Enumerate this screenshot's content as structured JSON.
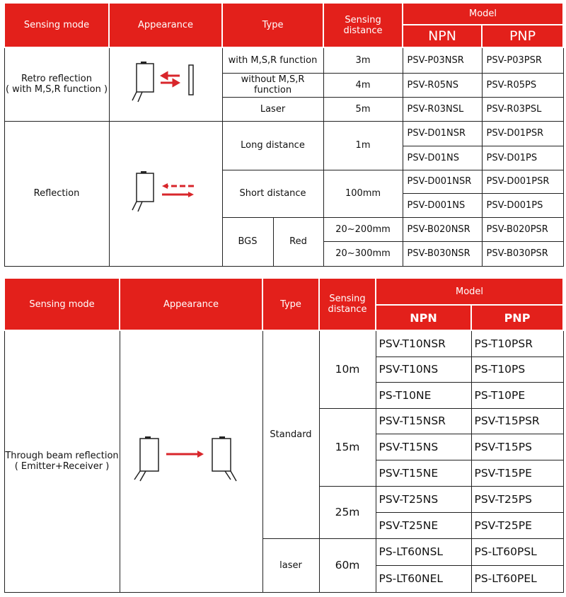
{
  "table1": {
    "headers": {
      "mode": "Sensing mode",
      "appearance": "Appearance",
      "type": "Type",
      "distance": "Sensing distance",
      "model": "Model",
      "npn": "NPN",
      "pnp": "PNP"
    },
    "retro": {
      "mode": "Retro reflection\n( with M,S,R function )",
      "rows": [
        {
          "type": "with M,S,R function",
          "distance": "3m",
          "npn": "PSV-P03NSR",
          "pnp": "PSV-P03PSR"
        },
        {
          "type": "without M,S,R function",
          "distance": "4m",
          "npn": "PSV-R05NS",
          "pnp": "PSV-R05PS"
        },
        {
          "type": "Laser",
          "distance": "5m",
          "npn": "PSV-R03NSL",
          "pnp": "PSV-R03PSL"
        }
      ]
    },
    "reflection": {
      "mode": "Reflection",
      "long": {
        "type": "Long distance",
        "distance": "1m",
        "npn": [
          "PSV-D01NSR",
          "PSV-D01NS"
        ],
        "pnp": [
          "PSV-D01PSR",
          "PSV-D01PS"
        ]
      },
      "short": {
        "type": "Short distance",
        "distance": "100mm",
        "npn": [
          "PSV-D001NSR",
          "PSV-D001NS"
        ],
        "pnp": [
          "PSV-D001PSR",
          "PSV-D001PS"
        ]
      },
      "bgs": {
        "type": "BGS",
        "color": "Red",
        "rows": [
          {
            "distance": "20~200mm",
            "npn": "PSV-B020NSR",
            "pnp": "PSV-B020PSR"
          },
          {
            "distance": "20~300mm",
            "npn": "PSV-B030NSR",
            "pnp": "PSV-B030PSR"
          }
        ]
      }
    }
  },
  "table2": {
    "headers": {
      "mode": "Sensing mode",
      "appearance": "Appearance",
      "type": "Type",
      "distance": "Sensing distance",
      "model": "Model",
      "npn": "NPN",
      "pnp": "PNP"
    },
    "mode": "Through beam reflection\n( Emitter+Receiver )",
    "standard": "Standard",
    "laser": "laser",
    "groups": [
      {
        "distance": "10m",
        "npn": [
          "PSV-T10NSR",
          "PSV-T10NS",
          "PS-T10NE"
        ],
        "pnp": [
          "PS-T10PSR",
          "PS-T10PS",
          "PS-T10PE"
        ]
      },
      {
        "distance": "15m",
        "npn": [
          "PSV-T15NSR",
          "PSV-T15NS",
          "PSV-T15NE"
        ],
        "pnp": [
          "PSV-T15PSR",
          "PSV-T15PS",
          "PSV-T15PE"
        ]
      },
      {
        "distance": "25m",
        "npn": [
          "PSV-T25NS",
          "PSV-T25NE"
        ],
        "pnp": [
          "PSV-T25PS",
          "PSV-T25PE"
        ]
      },
      {
        "distance": "60m",
        "npn": [
          "PS-LT60NSL",
          "PS-LT60NEL"
        ],
        "pnp": [
          "PS-LT60PSL",
          "PS-LT60PEL"
        ]
      }
    ]
  },
  "colors": {
    "header": "#e3201b",
    "arrow": "#d8262b"
  }
}
